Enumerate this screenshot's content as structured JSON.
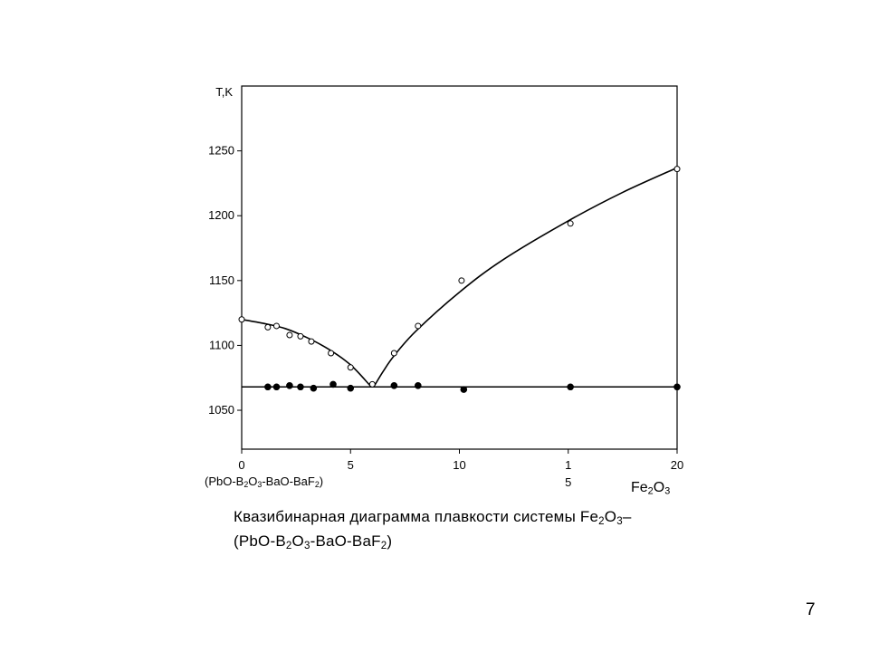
{
  "caption": {
    "line1_before": "Квазибинарная диаграмма плавкости системы Fe",
    "sub_2a": "2",
    "line1_o": "O",
    "sub_3a": "3",
    "line1_dash": "–",
    "line2_open": "(PbO-B",
    "sub_2b": "2",
    "line2_o": "O",
    "sub_3b": "3",
    "line2_mid": "-BaO-BaF",
    "sub_2c": "2",
    "line2_close": ")"
  },
  "left_component": {
    "open": "(PbO-B",
    "sub_2a": "2",
    "o": "O",
    "sub_3": "3",
    "mid": "-BaO-BaF",
    "sub_2b": "2",
    "close": ")"
  },
  "right_component": {
    "fe": "Fe",
    "sub_2": "2",
    "o": "O",
    "sub_3": "3"
  },
  "slide_number": "7",
  "chart_data": {
    "type": "scatter",
    "ylabel": "T,K",
    "xlim": [
      0,
      20
    ],
    "ylim": [
      1020,
      1300
    ],
    "y_ticks": [
      1050,
      1100,
      1150,
      1200,
      1250
    ],
    "x_tick_labels": [
      {
        "x": 0,
        "label": "0"
      },
      {
        "x": 5,
        "label": "5"
      },
      {
        "x": 10,
        "label": "10"
      },
      {
        "x": 15,
        "label": "1\n5"
      },
      {
        "x": 20,
        "label": "20"
      }
    ],
    "grid": false,
    "series": [
      {
        "marker": "open-circle",
        "points": [
          [
            0,
            1120
          ],
          [
            1.2,
            1114
          ],
          [
            1.6,
            1115
          ],
          [
            2.2,
            1108
          ],
          [
            2.7,
            1107
          ],
          [
            3.2,
            1103
          ],
          [
            4.1,
            1094
          ],
          [
            5.0,
            1083
          ],
          [
            6.0,
            1070
          ],
          [
            7.0,
            1094
          ],
          [
            8.1,
            1115
          ],
          [
            10.1,
            1150
          ],
          [
            15.1,
            1194
          ],
          [
            20,
            1236
          ]
        ]
      },
      {
        "marker": "filled-circle",
        "points": [
          [
            1.2,
            1068
          ],
          [
            1.6,
            1068
          ],
          [
            2.2,
            1069
          ],
          [
            2.7,
            1068
          ],
          [
            3.3,
            1067
          ],
          [
            4.2,
            1070
          ],
          [
            5.0,
            1067
          ],
          [
            7.0,
            1069
          ],
          [
            8.1,
            1069
          ],
          [
            10.2,
            1066
          ],
          [
            15.1,
            1068
          ],
          [
            20,
            1068
          ]
        ]
      }
    ],
    "curves": [
      {
        "style": "solid",
        "points": [
          [
            0,
            1120
          ],
          [
            1,
            1117
          ],
          [
            2,
            1113
          ],
          [
            3,
            1106
          ],
          [
            4,
            1097
          ],
          [
            5,
            1085
          ],
          [
            5.9,
            1069
          ]
        ]
      },
      {
        "style": "solid",
        "points": [
          [
            6.1,
            1069
          ],
          [
            6.5,
            1080
          ],
          [
            7,
            1092
          ],
          [
            8,
            1111
          ],
          [
            10,
            1141
          ],
          [
            12,
            1166
          ],
          [
            15,
            1196
          ],
          [
            17.5,
            1218
          ],
          [
            20,
            1237
          ]
        ]
      },
      {
        "style": "solid",
        "points": [
          [
            0,
            1068
          ],
          [
            20,
            1068
          ]
        ]
      }
    ]
  }
}
